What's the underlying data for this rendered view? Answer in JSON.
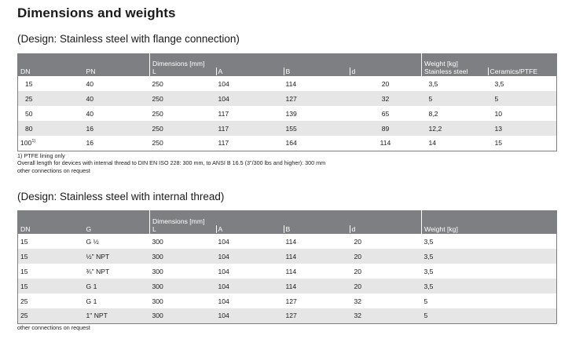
{
  "page": {
    "title": "Dimensions and weights"
  },
  "table1": {
    "caption": "(Design: Stainless steel with flange connection)",
    "headers": {
      "dn": "DN",
      "pn": "PN",
      "dimensions_group": "Dimensions [mm]",
      "l": "L",
      "a": "A",
      "b": "B",
      "d": "d",
      "weight_group": "Weight [kg]",
      "stainless": "Stainless steel",
      "ceramics": "Ceramics/PTFE"
    },
    "rows": [
      {
        "dn": "15",
        "pn": "40",
        "l": "250",
        "a": "104",
        "b": "114",
        "d": "20",
        "w_ss": "3,5",
        "w_cp": "3,5"
      },
      {
        "dn": "25",
        "pn": "40",
        "l": "250",
        "a": "104",
        "b": "127",
        "d": "32",
        "w_ss": "5",
        "w_cp": "5"
      },
      {
        "dn": "50",
        "pn": "40",
        "l": "250",
        "a": "117",
        "b": "139",
        "d": "65",
        "w_ss": "8,2",
        "w_cp": "10"
      },
      {
        "dn": "80",
        "pn": "16",
        "l": "250",
        "a": "117",
        "b": "155",
        "d": "89",
        "w_ss": "12,2",
        "w_cp": "13"
      },
      {
        "dn": "100",
        "dn_note": "1)",
        "pn": "16",
        "l": "250",
        "a": "117",
        "b": "164",
        "d": "114",
        "w_ss": "14",
        "w_cp": "15"
      }
    ],
    "notes": [
      "1) PTFE lining only",
      "Overall length for devices with internal thread to DIN EN ISO 228:  300 mm, to ANSI B 16.5 (3\"/300 lbs and higher): 300 mm",
      "other connections on request"
    ]
  },
  "table2": {
    "caption": "(Design: Stainless steel with internal thread)",
    "headers": {
      "dn": "DN",
      "g": "G",
      "dimensions_group": "Dimensions [mm]",
      "l": "L",
      "a": "A",
      "b": "B",
      "d": "d",
      "weight": "Weight [kg]"
    },
    "rows": [
      {
        "dn": "15",
        "g": "G ½",
        "l": "300",
        "a": "104",
        "b": "114",
        "d": "20",
        "w": "3,5"
      },
      {
        "dn": "15",
        "g": "½\" NPT",
        "l": "300",
        "a": "104",
        "b": "114",
        "d": "20",
        "w": "3,5"
      },
      {
        "dn": "15",
        "g": "¾\" NPT",
        "l": "300",
        "a": "104",
        "b": "114",
        "d": "20",
        "w": "3,5"
      },
      {
        "dn": "15",
        "g": "G 1",
        "l": "300",
        "a": "104",
        "b": "114",
        "d": "20",
        "w": "3,5"
      },
      {
        "dn": "25",
        "g": "G 1",
        "l": "300",
        "a": "104",
        "b": "127",
        "d": "32",
        "w": "5"
      },
      {
        "dn": "25",
        "g": "1\" NPT",
        "l": "300",
        "a": "104",
        "b": "127",
        "d": "32",
        "w": "5"
      }
    ],
    "note": "other connections on request"
  }
}
